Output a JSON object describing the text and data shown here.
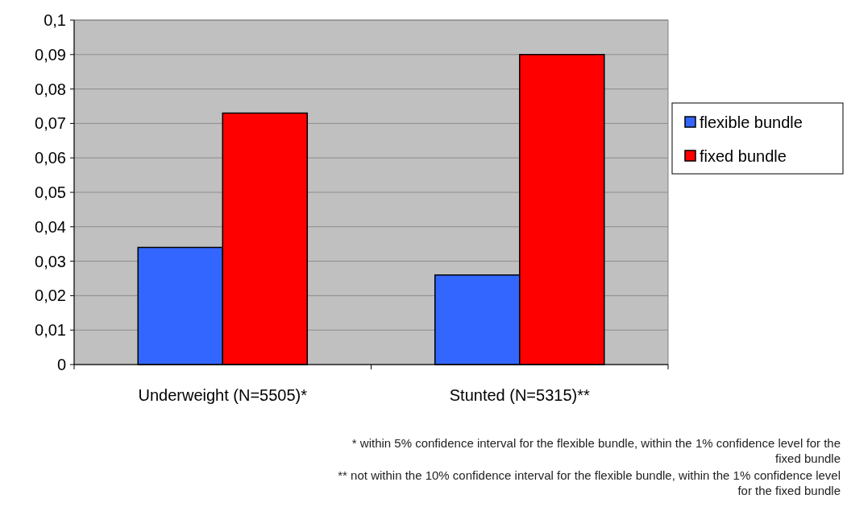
{
  "chart_data": {
    "type": "bar",
    "categories": [
      "Underweight (N=5505)*",
      "Stunted (N=5315)**"
    ],
    "series": [
      {
        "name": "flexible bundle",
        "color": "#3366ff",
        "values": [
          0.034,
          0.026
        ]
      },
      {
        "name": "fixed bundle",
        "color": "#ff0000",
        "values": [
          0.073,
          0.09
        ]
      }
    ],
    "ylim": [
      0,
      0.1
    ],
    "yticks": [
      {
        "value": 0,
        "label": "0"
      },
      {
        "value": 0.01,
        "label": "0,01"
      },
      {
        "value": 0.02,
        "label": "0,02"
      },
      {
        "value": 0.03,
        "label": "0,03"
      },
      {
        "value": 0.04,
        "label": "0,04"
      },
      {
        "value": 0.05,
        "label": "0,05"
      },
      {
        "value": 0.06,
        "label": "0,06"
      },
      {
        "value": 0.07,
        "label": "0,07"
      },
      {
        "value": 0.08,
        "label": "0,08"
      },
      {
        "value": 0.09,
        "label": "0,09"
      },
      {
        "value": 0.1,
        "label": "0,1"
      }
    ],
    "grid": "y",
    "legend": "right",
    "annotations": [
      "* within 5% confidence interval for the flexible bundle, within the 1% confidence level for the fixed bundle",
      "** not within the 10% confidence interval for the flexible bundle, within the 1% confidence level for the fixed bundle"
    ]
  }
}
